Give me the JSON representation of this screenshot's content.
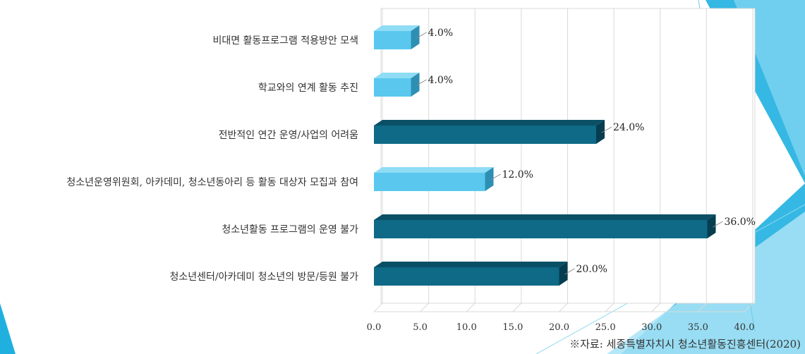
{
  "source_note": "※자료: 세종특별자치시 청소년활동진흥센터(2020)",
  "colors": {
    "light_bar": "#5ac8ee",
    "light_bar_top": "#8fdcf5",
    "light_bar_side": "#2d8fb3",
    "dark_bar": "#0e6a86",
    "dark_bar_top": "#0a4f66",
    "dark_bar_side": "#063d50",
    "grid": "#d9d9d9",
    "deco_right": "#1fb0e0",
    "deco_light": "#a9e3f6"
  },
  "chart_data": {
    "type": "bar",
    "orientation": "horizontal",
    "categories": [
      "비대면 활동프로그램 적용방안 모색",
      "학교와의 연계 활동 추진",
      "전반적인 연간 운영/사업의 어려움",
      "청소년운영위원회, 아카데미, 청소년동아리 등 활동 대상자 모집과 참여",
      "청소년활동 프로그램의 운영 불가",
      "청소년센터/아카데미 청소년의 방문/등원 불가"
    ],
    "values": [
      4.0,
      4.0,
      24.0,
      12.0,
      36.0,
      20.0
    ],
    "value_labels": [
      "4.0%",
      "4.0%",
      "24.0%",
      "12.0%",
      "36.0%",
      "20.0%"
    ],
    "bar_shade": [
      "light",
      "light",
      "dark",
      "light",
      "dark",
      "dark"
    ],
    "xlim": [
      0,
      40
    ],
    "x_ticks": [
      "0.0",
      "5.0",
      "10.0",
      "15.0",
      "20.0",
      "25.0",
      "30.0",
      "35.0",
      "40.0"
    ],
    "grid": true,
    "legend": "none",
    "title": "",
    "xlabel": "",
    "ylabel": ""
  }
}
